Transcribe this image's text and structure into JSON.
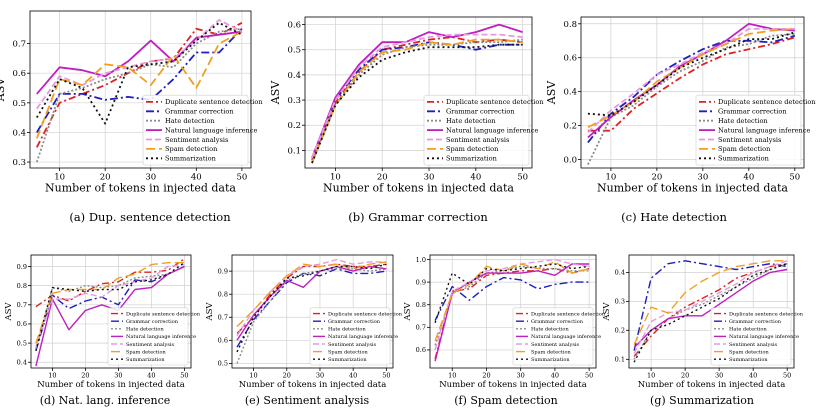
{
  "figure": {
    "series_order": [
      "Duplicate sentence detection",
      "Grammar correction",
      "Hate detection",
      "Natural language inference",
      "Sentiment analysis",
      "Spam detection",
      "Summarization"
    ],
    "series_styles": {
      "Duplicate sentence detection": {
        "color": "#e02020",
        "dash": "7,3,2,3"
      },
      "Grammar correction": {
        "color": "#1f1fbf",
        "dash": "8,3,2,3"
      },
      "Hate detection": {
        "color": "#8c8c8c",
        "dash": "2,2"
      },
      "Natural language inference": {
        "color": "#bf1fbf",
        "dash": ""
      },
      "Sentiment analysis": {
        "color": "#e39ae3",
        "dash": "6,3"
      },
      "Spam detection": {
        "color": "#f0a020",
        "dash": "9,4"
      },
      "Summarization": {
        "color": "#111111",
        "dash": "2,3"
      }
    }
  },
  "chart_data": [
    {
      "id": "a",
      "type": "line",
      "caption": "(a) Dup. sentence detection",
      "title": "",
      "xlabel": "Number of tokens in injected data",
      "ylabel": "ASV",
      "xlim": [
        3.5,
        52
      ],
      "ylim": [
        0.28,
        0.81
      ],
      "xticks": [
        10,
        20,
        30,
        40,
        50
      ],
      "yticks": [
        0.3,
        0.4,
        0.5,
        0.6,
        0.7
      ],
      "x": [
        5,
        10,
        15,
        20,
        25,
        30,
        35,
        40,
        45,
        50
      ],
      "series": [
        {
          "name": "Duplicate sentence detection",
          "values": [
            0.35,
            0.5,
            0.53,
            0.56,
            0.6,
            0.64,
            0.65,
            0.75,
            0.73,
            0.77
          ]
        },
        {
          "name": "Grammar correction",
          "values": [
            0.4,
            0.53,
            0.53,
            0.51,
            0.52,
            0.51,
            0.58,
            0.67,
            0.67,
            0.75
          ]
        },
        {
          "name": "Hate detection",
          "values": [
            0.3,
            0.53,
            0.55,
            0.58,
            0.6,
            0.63,
            0.62,
            0.7,
            0.74,
            0.75
          ]
        },
        {
          "name": "Natural language inference",
          "values": [
            0.53,
            0.62,
            0.61,
            0.59,
            0.64,
            0.71,
            0.64,
            0.72,
            0.73,
            0.74
          ]
        },
        {
          "name": "Sentiment analysis",
          "values": [
            0.48,
            0.59,
            0.56,
            0.6,
            0.62,
            0.64,
            0.65,
            0.71,
            0.78,
            0.74
          ]
        },
        {
          "name": "Spam detection",
          "values": [
            0.38,
            0.58,
            0.56,
            0.63,
            0.62,
            0.56,
            0.66,
            0.55,
            0.7,
            0.74
          ]
        },
        {
          "name": "Summarization",
          "values": [
            0.45,
            0.58,
            0.55,
            0.43,
            0.62,
            0.63,
            0.64,
            0.71,
            0.77,
            0.73
          ]
        }
      ],
      "legend": "lower-right"
    },
    {
      "id": "b",
      "type": "line",
      "caption": "(b) Grammar correction",
      "title": "",
      "xlabel": "Number of tokens in injected data",
      "ylabel": "ASV",
      "xlim": [
        3.5,
        52
      ],
      "ylim": [
        0.03,
        0.63
      ],
      "xticks": [
        10,
        20,
        30,
        40,
        50
      ],
      "yticks": [
        0.1,
        0.2,
        0.3,
        0.4,
        0.5,
        0.6
      ],
      "x": [
        5,
        10,
        15,
        20,
        25,
        30,
        35,
        40,
        45,
        50
      ],
      "series": [
        {
          "name": "Duplicate sentence detection",
          "values": [
            0.06,
            0.29,
            0.41,
            0.5,
            0.52,
            0.54,
            0.55,
            0.53,
            0.54,
            0.53
          ]
        },
        {
          "name": "Grammar correction",
          "values": [
            0.07,
            0.3,
            0.42,
            0.5,
            0.51,
            0.53,
            0.52,
            0.5,
            0.52,
            0.52
          ]
        },
        {
          "name": "Hate detection",
          "values": [
            0.05,
            0.28,
            0.4,
            0.48,
            0.51,
            0.52,
            0.52,
            0.53,
            0.53,
            0.54
          ]
        },
        {
          "name": "Natural language inference",
          "values": [
            0.07,
            0.31,
            0.44,
            0.53,
            0.53,
            0.57,
            0.55,
            0.57,
            0.6,
            0.57
          ]
        },
        {
          "name": "Sentiment analysis",
          "values": [
            0.07,
            0.3,
            0.43,
            0.51,
            0.53,
            0.55,
            0.56,
            0.56,
            0.56,
            0.55
          ]
        },
        {
          "name": "Spam detection",
          "values": [
            0.05,
            0.28,
            0.41,
            0.49,
            0.5,
            0.53,
            0.52,
            0.54,
            0.54,
            0.53
          ]
        },
        {
          "name": "Summarization",
          "values": [
            0.05,
            0.28,
            0.39,
            0.46,
            0.49,
            0.51,
            0.51,
            0.51,
            0.52,
            0.52
          ]
        }
      ],
      "legend": "lower-right"
    },
    {
      "id": "c",
      "type": "line",
      "caption": "(c) Hate detection",
      "title": "",
      "xlabel": "Number of tokens in injected data",
      "ylabel": "ASV",
      "xlim": [
        3.5,
        52
      ],
      "ylim": [
        -0.05,
        0.84
      ],
      "xticks": [
        10,
        20,
        30,
        40,
        50
      ],
      "yticks": [
        0.0,
        0.2,
        0.4,
        0.6,
        0.8
      ],
      "x": [
        5,
        10,
        15,
        20,
        25,
        30,
        35,
        40,
        45,
        50
      ],
      "series": [
        {
          "name": "Duplicate sentence detection",
          "values": [
            0.17,
            0.17,
            0.3,
            0.39,
            0.48,
            0.56,
            0.62,
            0.65,
            0.68,
            0.72
          ]
        },
        {
          "name": "Grammar correction",
          "values": [
            0.1,
            0.27,
            0.37,
            0.5,
            0.58,
            0.65,
            0.7,
            0.7,
            0.69,
            0.73
          ]
        },
        {
          "name": "Hate detection",
          "values": [
            -0.03,
            0.25,
            0.32,
            0.43,
            0.52,
            0.58,
            0.66,
            0.68,
            0.73,
            0.74
          ]
        },
        {
          "name": "Natural language inference",
          "values": [
            0.13,
            0.25,
            0.35,
            0.44,
            0.55,
            0.62,
            0.7,
            0.8,
            0.77,
            0.76
          ]
        },
        {
          "name": "Sentiment analysis",
          "values": [
            0.16,
            0.29,
            0.39,
            0.5,
            0.56,
            0.63,
            0.68,
            0.77,
            0.77,
            0.77
          ]
        },
        {
          "name": "Spam detection",
          "values": [
            0.19,
            0.26,
            0.34,
            0.46,
            0.54,
            0.62,
            0.68,
            0.74,
            0.76,
            0.77
          ]
        },
        {
          "name": "Summarization",
          "values": [
            0.27,
            0.26,
            0.34,
            0.44,
            0.54,
            0.6,
            0.65,
            0.71,
            0.71,
            0.75
          ]
        }
      ],
      "legend": "lower-right"
    },
    {
      "id": "d",
      "type": "line",
      "caption": "(d) Nat. lang. inference",
      "title": "",
      "xlabel": "Number of tokens in injected data",
      "ylabel": "ASV",
      "xlim": [
        3.5,
        52
      ],
      "ylim": [
        0.37,
        0.96
      ],
      "xticks": [
        10,
        20,
        30,
        40,
        50
      ],
      "yticks": [
        0.4,
        0.5,
        0.6,
        0.7,
        0.8,
        0.9
      ],
      "x": [
        5,
        10,
        15,
        20,
        25,
        30,
        35,
        40,
        45,
        50
      ],
      "series": [
        {
          "name": "Duplicate sentence detection",
          "values": [
            0.69,
            0.75,
            0.72,
            0.77,
            0.81,
            0.82,
            0.87,
            0.87,
            0.88,
            0.94
          ]
        },
        {
          "name": "Grammar correction",
          "values": [
            0.46,
            0.75,
            0.68,
            0.72,
            0.74,
            0.7,
            0.83,
            0.82,
            0.86,
            0.9
          ]
        },
        {
          "name": "Hate detection",
          "values": [
            0.47,
            0.79,
            0.77,
            0.8,
            0.79,
            0.8,
            0.84,
            0.85,
            0.86,
            0.9
          ]
        },
        {
          "name": "Natural language inference",
          "values": [
            0.38,
            0.73,
            0.57,
            0.67,
            0.7,
            0.67,
            0.78,
            0.79,
            0.86,
            0.9
          ]
        },
        {
          "name": "Sentiment analysis",
          "values": [
            0.48,
            0.73,
            0.73,
            0.76,
            0.74,
            0.8,
            0.82,
            0.84,
            0.9,
            0.91
          ]
        },
        {
          "name": "Spam detection",
          "values": [
            0.5,
            0.76,
            0.78,
            0.78,
            0.78,
            0.84,
            0.86,
            0.91,
            0.92,
            0.92
          ]
        },
        {
          "name": "Summarization",
          "values": [
            0.46,
            0.79,
            0.78,
            0.77,
            0.78,
            0.78,
            0.82,
            0.83,
            0.86,
            0.92
          ]
        }
      ],
      "legend": "lower-right"
    },
    {
      "id": "e",
      "type": "line",
      "caption": "(e) Sentiment analysis",
      "title": "",
      "xlabel": "Number of tokens in injected data",
      "ylabel": "ASV",
      "xlim": [
        3.5,
        52
      ],
      "ylim": [
        0.48,
        0.97
      ],
      "xticks": [
        10,
        20,
        30,
        40,
        50
      ],
      "yticks": [
        0.5,
        0.6,
        0.7,
        0.8,
        0.9
      ],
      "x": [
        5,
        10,
        15,
        20,
        25,
        30,
        35,
        40,
        45,
        50
      ],
      "series": [
        {
          "name": "Duplicate sentence detection",
          "values": [
            0.63,
            0.7,
            0.8,
            0.87,
            0.92,
            0.92,
            0.93,
            0.92,
            0.92,
            0.93
          ]
        },
        {
          "name": "Grammar correction",
          "values": [
            0.57,
            0.69,
            0.77,
            0.85,
            0.89,
            0.88,
            0.91,
            0.89,
            0.89,
            0.9
          ]
        },
        {
          "name": "Hate detection",
          "values": [
            0.5,
            0.68,
            0.77,
            0.86,
            0.89,
            0.9,
            0.91,
            0.91,
            0.9,
            0.91
          ]
        },
        {
          "name": "Natural language inference",
          "values": [
            0.6,
            0.71,
            0.79,
            0.86,
            0.83,
            0.9,
            0.92,
            0.9,
            0.92,
            0.91
          ]
        },
        {
          "name": "Sentiment analysis",
          "values": [
            0.62,
            0.73,
            0.81,
            0.88,
            0.92,
            0.93,
            0.95,
            0.93,
            0.94,
            0.94
          ]
        },
        {
          "name": "Spam detection",
          "values": [
            0.66,
            0.73,
            0.81,
            0.88,
            0.93,
            0.92,
            0.93,
            0.91,
            0.93,
            0.94
          ]
        },
        {
          "name": "Summarization",
          "values": [
            0.55,
            0.7,
            0.79,
            0.87,
            0.88,
            0.9,
            0.92,
            0.92,
            0.91,
            0.93
          ]
        }
      ],
      "legend": "lower-right"
    },
    {
      "id": "f",
      "type": "line",
      "caption": "(f) Spam detection",
      "title": "",
      "xlabel": "Number of tokens in injected data",
      "ylabel": "ASV",
      "xlim": [
        3.5,
        52
      ],
      "ylim": [
        0.52,
        1.02
      ],
      "xticks": [
        10,
        20,
        30,
        40,
        50
      ],
      "yticks": [
        0.6,
        0.7,
        0.8,
        0.9,
        1.0
      ],
      "x": [
        5,
        10,
        15,
        20,
        25,
        30,
        35,
        40,
        45,
        50
      ],
      "series": [
        {
          "name": "Duplicate sentence detection",
          "values": [
            0.56,
            0.86,
            0.87,
            0.93,
            0.94,
            0.95,
            0.95,
            0.96,
            0.94,
            0.96
          ]
        },
        {
          "name": "Grammar correction",
          "values": [
            0.73,
            0.88,
            0.82,
            0.88,
            0.92,
            0.91,
            0.87,
            0.89,
            0.9,
            0.9
          ]
        },
        {
          "name": "Hate detection",
          "values": [
            0.62,
            0.85,
            0.88,
            0.94,
            0.95,
            0.97,
            0.96,
            0.96,
            0.95,
            0.95
          ]
        },
        {
          "name": "Natural language inference",
          "values": [
            0.55,
            0.85,
            0.9,
            0.94,
            0.94,
            0.94,
            0.95,
            0.93,
            0.98,
            0.98
          ]
        },
        {
          "name": "Sentiment analysis",
          "values": [
            0.6,
            0.86,
            0.9,
            0.95,
            0.96,
            0.98,
            0.99,
            1.0,
            0.98,
            0.97
          ]
        },
        {
          "name": "Spam detection",
          "values": [
            0.64,
            0.85,
            0.89,
            0.97,
            0.95,
            0.98,
            0.96,
            0.99,
            0.94,
            0.96
          ]
        },
        {
          "name": "Summarization",
          "values": [
            0.72,
            0.94,
            0.89,
            0.96,
            0.95,
            0.96,
            0.97,
            0.98,
            0.96,
            0.97
          ]
        }
      ],
      "legend": "lower-right"
    },
    {
      "id": "g",
      "type": "line",
      "caption": "(g) Summarization",
      "title": "",
      "xlabel": "Number of tokens in injected data",
      "ylabel": "ASV",
      "xlim": [
        3.5,
        52
      ],
      "ylim": [
        0.07,
        0.46
      ],
      "xticks": [
        10,
        20,
        30,
        40,
        50
      ],
      "yticks": [
        0.1,
        0.2,
        0.3,
        0.4
      ],
      "x": [
        5,
        10,
        15,
        20,
        25,
        30,
        35,
        40,
        45,
        50
      ],
      "series": [
        {
          "name": "Duplicate sentence detection",
          "values": [
            0.11,
            0.18,
            0.24,
            0.28,
            0.31,
            0.34,
            0.38,
            0.4,
            0.42,
            0.43
          ]
        },
        {
          "name": "Grammar correction",
          "values": [
            0.13,
            0.38,
            0.43,
            0.44,
            0.43,
            0.42,
            0.41,
            0.42,
            0.43,
            0.42
          ]
        },
        {
          "name": "Hate detection",
          "values": [
            0.1,
            0.2,
            0.24,
            0.27,
            0.29,
            0.32,
            0.35,
            0.38,
            0.41,
            0.43
          ]
        },
        {
          "name": "Natural language inference",
          "values": [
            0.14,
            0.2,
            0.24,
            0.25,
            0.25,
            0.29,
            0.33,
            0.37,
            0.4,
            0.41
          ]
        },
        {
          "name": "Sentiment analysis",
          "values": [
            0.12,
            0.23,
            0.26,
            0.27,
            0.3,
            0.33,
            0.36,
            0.4,
            0.42,
            0.44
          ]
        },
        {
          "name": "Spam detection",
          "values": [
            0.15,
            0.28,
            0.26,
            0.33,
            0.37,
            0.4,
            0.42,
            0.43,
            0.44,
            0.44
          ]
        },
        {
          "name": "Summarization",
          "values": [
            0.09,
            0.2,
            0.22,
            0.25,
            0.28,
            0.31,
            0.35,
            0.39,
            0.41,
            0.43
          ]
        }
      ],
      "legend": "lower-right"
    }
  ]
}
